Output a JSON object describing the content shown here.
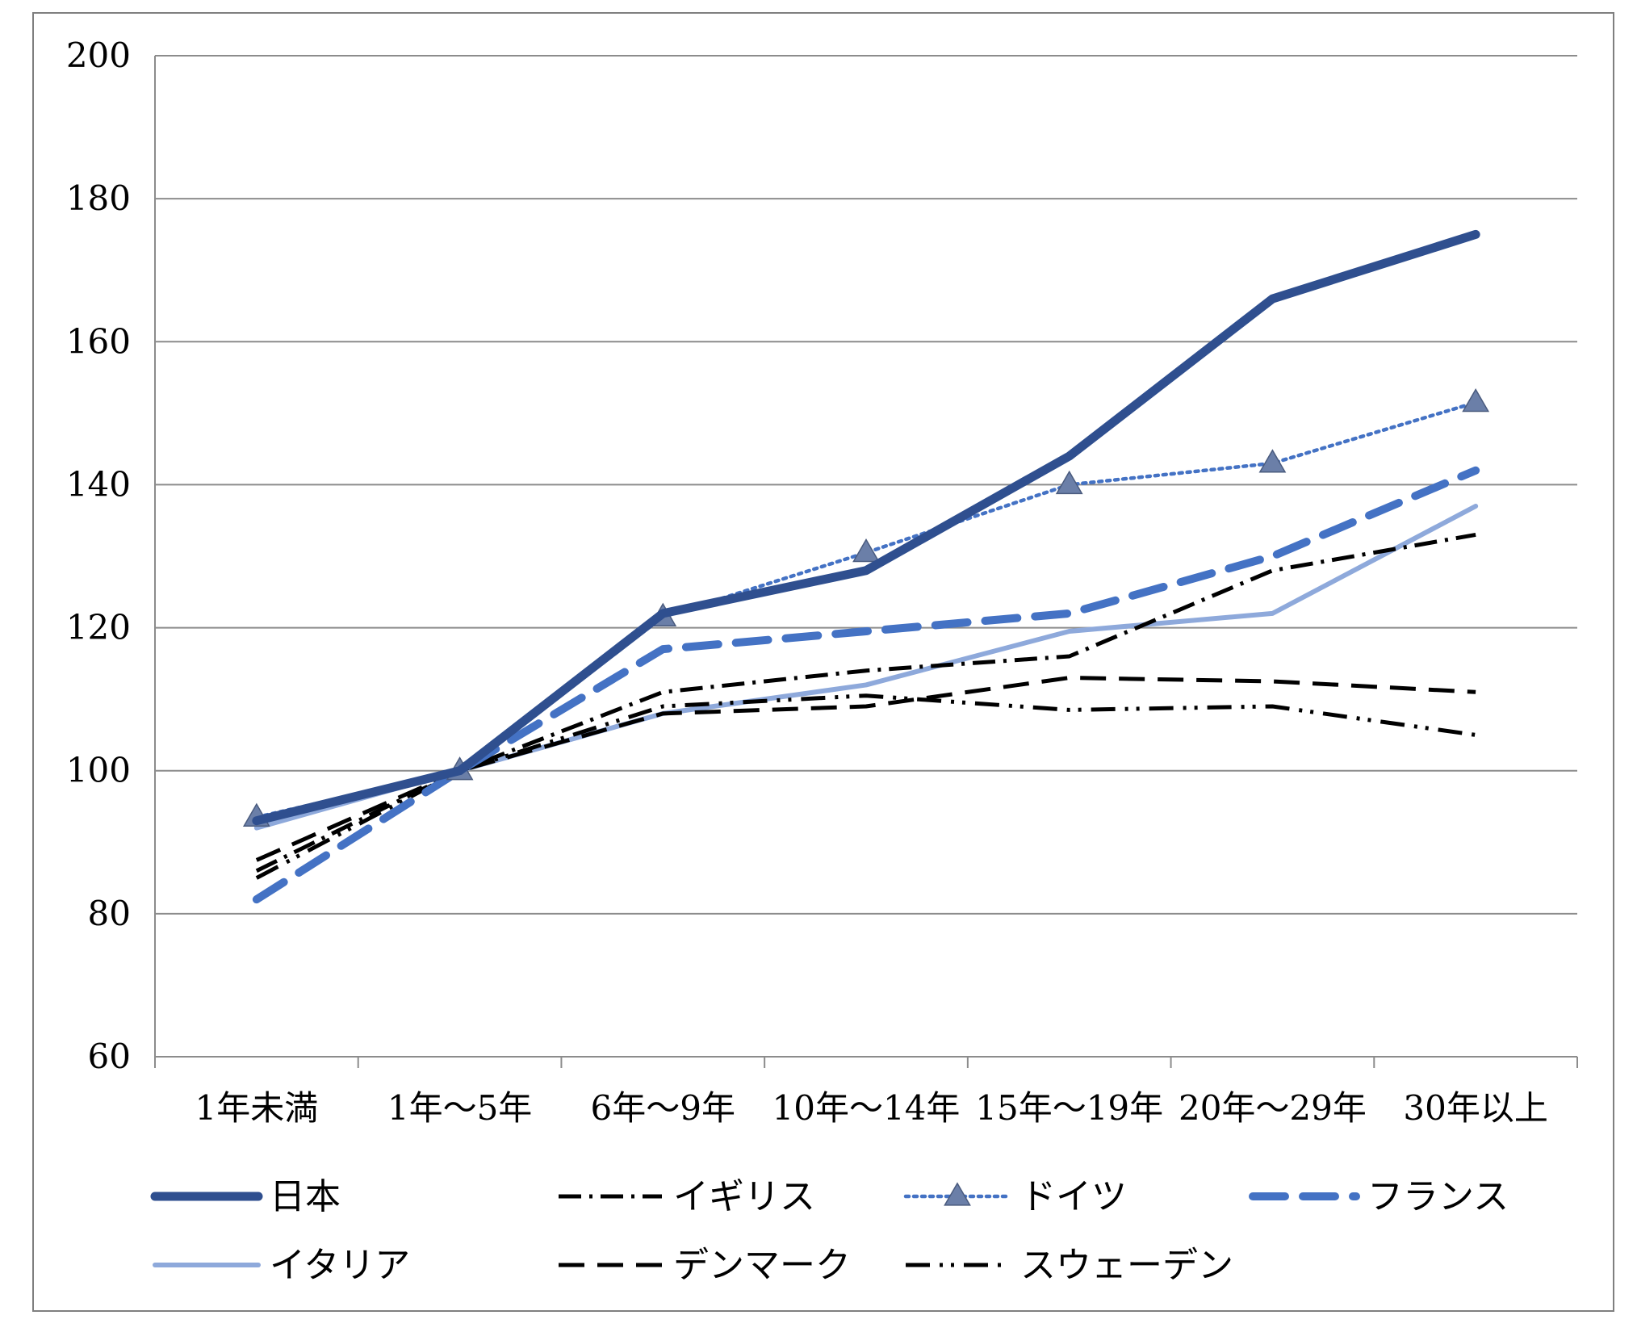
{
  "chart_data": {
    "type": "line",
    "title": "",
    "xlabel": "",
    "ylabel": "",
    "ylim": [
      60,
      200
    ],
    "yticks": [
      60,
      80,
      100,
      120,
      140,
      160,
      180,
      200
    ],
    "grid": true,
    "legend_position": "bottom",
    "categories": [
      "1年未満",
      "1年～5年",
      "6年～9年",
      "10年～14年",
      "15年～19年",
      "20年～29年",
      "30年以上"
    ],
    "series": [
      {
        "name": "日本",
        "values": [
          93,
          100,
          122,
          128,
          144,
          166,
          175
        ],
        "color": "#2F4F8F",
        "style": "solid-thick"
      },
      {
        "name": "イギリス",
        "values": [
          86,
          100,
          111,
          114,
          116,
          128,
          133
        ],
        "color": "#000000",
        "style": "dash-dot"
      },
      {
        "name": "ドイツ",
        "values": [
          93.5,
          100,
          121.5,
          130.5,
          140,
          143,
          151.5
        ],
        "color": "#4472C4",
        "style": "dotted-triangle"
      },
      {
        "name": "フランス",
        "values": [
          82,
          100,
          117,
          119.5,
          122,
          130,
          142
        ],
        "color": "#4472C4",
        "style": "long-dash"
      },
      {
        "name": "イタリア",
        "values": [
          92,
          100,
          108,
          112,
          119.5,
          122,
          137
        ],
        "color": "#8EA9DB",
        "style": "solid"
      },
      {
        "name": "デンマーク",
        "values": [
          87.5,
          100,
          108,
          109,
          113,
          112.5,
          111
        ],
        "color": "#000000",
        "style": "dash"
      },
      {
        "name": "スウェーデン",
        "values": [
          85,
          100,
          109,
          110.5,
          108.5,
          109,
          105
        ],
        "color": "#000000",
        "style": "dash-dot-dot"
      }
    ]
  }
}
